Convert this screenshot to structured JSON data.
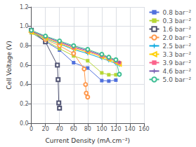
{
  "chart_data": {
    "type": "line",
    "xlabel": "Current Density (mA.cm⁻²)",
    "ylabel": "Cell Voltage (V)",
    "xlim": [
      0,
      160
    ],
    "ylim": [
      0.0,
      1.2
    ],
    "xticks": [
      0,
      20,
      40,
      60,
      80,
      100,
      120,
      140,
      160
    ],
    "yticks": [
      {
        "value": 0.0,
        "label": "0.0"
      },
      0.2,
      0.4,
      0.6,
      0.8,
      {
        "value": 1.0,
        "label": "1.0"
      },
      1.2
    ],
    "grid": true,
    "legend": "upper right",
    "series": [
      {
        "name": "0.8 bar⁻²",
        "marker": "square",
        "x": [
          0,
          20,
          40,
          60,
          80,
          100,
          110,
          120
        ],
        "values": [
          0.935,
          0.845,
          0.755,
          0.625,
          0.57,
          0.44,
          0.435,
          0.445
        ]
      },
      {
        "name": "0.3 bar⁻²",
        "marker": "square",
        "x": [
          0,
          20,
          40,
          60,
          80,
          100,
          110,
          120
        ],
        "values": [
          0.935,
          0.855,
          0.77,
          0.695,
          0.645,
          0.52,
          0.5,
          0.5
        ]
      },
      {
        "name": "1.6 bar⁻²",
        "marker": "square-open",
        "x": [
          0,
          20,
          37,
          38,
          39,
          40
        ],
        "values": [
          0.96,
          0.84,
          0.6,
          0.45,
          0.21,
          0.155
        ]
      },
      {
        "name": "2.0 bar⁻²",
        "marker": "circle-open",
        "x": [
          0,
          20,
          40,
          60,
          75,
          77,
          78,
          80
        ],
        "values": [
          0.95,
          0.865,
          0.8,
          0.72,
          0.56,
          0.4,
          0.31,
          0.27
        ]
      },
      {
        "name": "2.5 bar⁻²",
        "marker": "plus",
        "x": [
          0,
          20,
          40,
          60,
          80,
          100,
          110,
          120,
          125
        ],
        "values": [
          0.94,
          0.875,
          0.82,
          0.76,
          0.72,
          0.67,
          0.645,
          0.615,
          0.6
        ]
      },
      {
        "name": "3.3 bar⁻²",
        "marker": "triangle-left-open",
        "x": [
          0,
          20,
          40,
          60,
          80,
          100,
          110,
          120,
          125
        ],
        "values": [
          0.94,
          0.88,
          0.825,
          0.77,
          0.735,
          0.685,
          0.658,
          0.63,
          0.61
        ]
      },
      {
        "name": "3.9 bar⁻²",
        "marker": "square",
        "x": [
          0,
          20,
          40,
          60,
          80,
          100,
          110,
          120,
          125
        ],
        "values": [
          0.95,
          0.89,
          0.835,
          0.78,
          0.745,
          0.695,
          0.668,
          0.64,
          0.625
        ]
      },
      {
        "name": "4.6 bar⁻²",
        "marker": "plus",
        "x": [
          0,
          20,
          40,
          60,
          80,
          100,
          110,
          120,
          125
        ],
        "values": [
          0.95,
          0.893,
          0.84,
          0.79,
          0.752,
          0.703,
          0.675,
          0.648,
          0.63
        ]
      },
      {
        "name": "5.0 bar⁻²",
        "marker": "circle-open",
        "x": [
          0,
          20,
          40,
          60,
          80,
          100,
          110,
          120,
          125
        ],
        "values": [
          0.96,
          0.9,
          0.85,
          0.8,
          0.762,
          0.712,
          0.682,
          0.655,
          0.505
        ]
      }
    ]
  }
}
